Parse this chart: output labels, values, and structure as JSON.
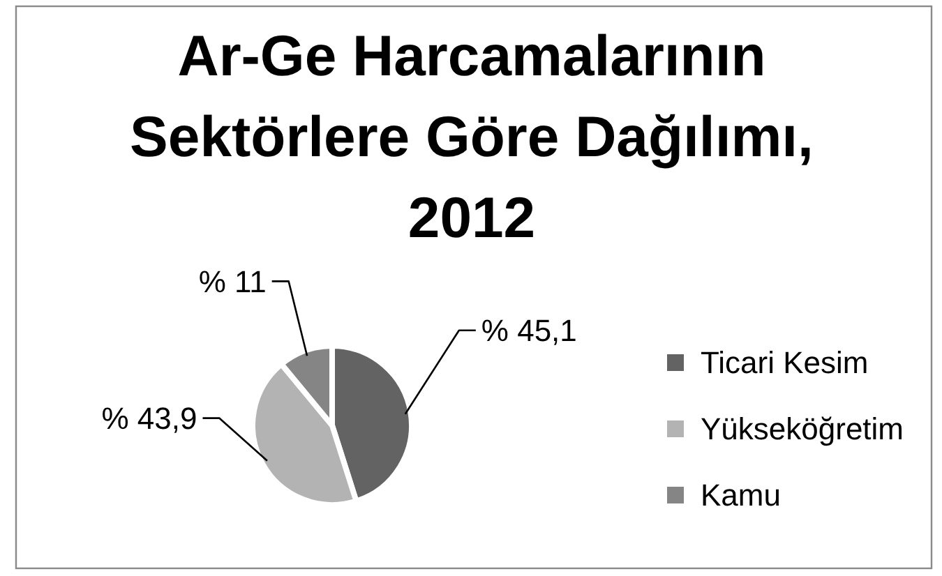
{
  "chart_data": {
    "type": "pie",
    "title": "Ar-Ge Harcamalarının Sektörlere Göre Dağılımı, 2012",
    "categories": [
      "Ticari Kesim",
      "Yükseköğretim",
      "Kamu"
    ],
    "values": [
      45.1,
      43.9,
      11
    ],
    "colors": [
      "#636363",
      "#b3b3b3",
      "#858585"
    ],
    "value_labels": [
      "% 45,1",
      "% 43,9",
      "% 11"
    ],
    "legend": "right"
  }
}
